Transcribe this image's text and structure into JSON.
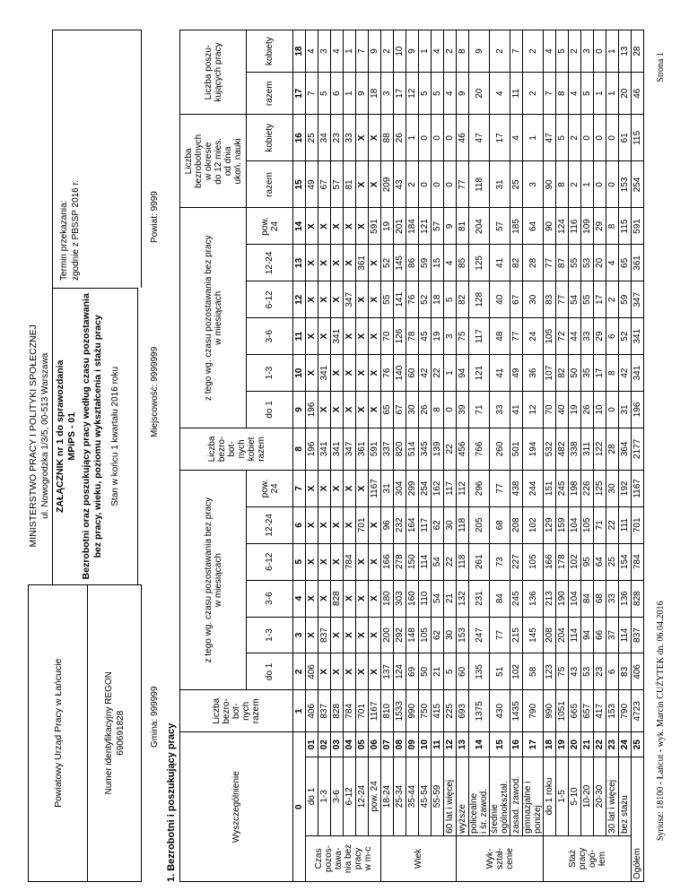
{
  "page": {
    "header": {
      "left": {
        "office_name": "Powiatowy Urząd Pracy w Łańcucie",
        "regon_label": "Numer identyfikacyjny REGON",
        "regon_value": "690691828"
      },
      "center": {
        "ministry": "MINISTERSTWO PRACY I POLITYKI SPOŁECZNEJ",
        "address": "ul. Nowogrodzka 1/3/5, 00-513 Warszawa",
        "attachment": "ZAŁĄCZNIK nr 1 do sprawozdania",
        "form_code": "MPiPS - 01",
        "title_line1": "Bezrobotni oraz poszukujący pracy według czasu pozostawania",
        "title_line2": "bez pracy, wieku, poziomu wykształcenia i stażu pracy",
        "status_line": "Stan w końcu 1 kwartału 2016 roku"
      },
      "right": {
        "deadline_label": "Termin przekazania:",
        "deadline_value": "zgodnie z PBSSP 2016 r."
      },
      "location": {
        "gmina": "Gmina: 999999",
        "miejscowosc": "Miejscowość: 9999999",
        "powiat": "Powiat: 9999"
      }
    },
    "section_title": "1. Bezrobotni i poszukujący pracy",
    "footer": {
      "left": "Syriusz: 18100 - Łańcut - wyk. Marcin CUŻYTEK dn. 06.04.2016",
      "right": "Strona 1"
    }
  },
  "table": {
    "headers": {
      "wyszczegolnienie": "Wyszczególnienie",
      "col1": "Liczba\nbezro-\nbot-\nnych\nrazem",
      "group_time": "z tego wg. czasu pozostawania bez pracy\nw miesiącach",
      "col8": "Liczba\nbezro-\nbot-\nnych\nkobiet\nrazem",
      "group_grad": "Liczba\nbezrobotnych\nw okresie\ndo 12 mies.\nod dnia\nukoń. nauki",
      "group_seek": "Liczba poszu-\nkujących pracy",
      "sub_time": [
        "do 1",
        "1-3",
        "3-6",
        "6-12",
        "12-24",
        "pow.\n24"
      ],
      "sub_razem": "razem",
      "sub_kobiety": "kobiety",
      "col_numbers": [
        "0",
        "1",
        "2",
        "3",
        "4",
        "5",
        "6",
        "7",
        "8",
        "9",
        "10",
        "11",
        "12",
        "13",
        "14",
        "15",
        "16",
        "17",
        "18"
      ]
    },
    "groups": [
      {
        "label": "Czas\npozos-\ntawa-\nnia bez\npracy\nw m-c",
        "start": 0,
        "count": 6
      },
      {
        "label": "Wiek",
        "start": 6,
        "count": 6
      },
      {
        "label": "Wyk-\nształ-\ncenie",
        "start": 12,
        "count": 5
      },
      {
        "label": "Staż\npracy\nogó-\nłem",
        "start": 17,
        "count": 7
      }
    ],
    "rows": [
      {
        "num": "01",
        "label": "do 1",
        "align": "center",
        "v": [
          "406",
          "406",
          "X",
          "X",
          "X",
          "X",
          "X",
          "196",
          "196",
          "X",
          "X",
          "X",
          "X",
          "X",
          "49",
          "25",
          "7",
          "4"
        ]
      },
      {
        "num": "02",
        "label": "1-3",
        "align": "center",
        "v": [
          "837",
          "X",
          "837",
          "X",
          "X",
          "X",
          "X",
          "341",
          "X",
          "341",
          "X",
          "X",
          "X",
          "X",
          "67",
          "34",
          "5",
          "3"
        ]
      },
      {
        "num": "03",
        "label": "3-6",
        "align": "center",
        "v": [
          "828",
          "X",
          "X",
          "828",
          "X",
          "X",
          "X",
          "341",
          "X",
          "X",
          "341",
          "X",
          "X",
          "X",
          "57",
          "23",
          "6",
          "4"
        ]
      },
      {
        "num": "04",
        "label": "6-12",
        "align": "center",
        "v": [
          "784",
          "X",
          "X",
          "X",
          "784",
          "X",
          "X",
          "347",
          "X",
          "X",
          "X",
          "347",
          "X",
          "X",
          "81",
          "33",
          "1",
          "1"
        ]
      },
      {
        "num": "05",
        "label": "12-24",
        "align": "center",
        "v": [
          "701",
          "X",
          "X",
          "X",
          "X",
          "701",
          "X",
          "361",
          "X",
          "X",
          "X",
          "X",
          "361",
          "X",
          "X",
          "X",
          "9",
          "7"
        ]
      },
      {
        "num": "06",
        "label": "pow. 24",
        "align": "center",
        "v": [
          "1167",
          "X",
          "X",
          "X",
          "X",
          "X",
          "1167",
          "591",
          "X",
          "X",
          "X",
          "X",
          "X",
          "591",
          "X",
          "X",
          "18",
          "9"
        ]
      },
      {
        "num": "07",
        "label": "18-24",
        "align": "center",
        "v": [
          "810",
          "137",
          "200",
          "180",
          "166",
          "96",
          "31",
          "337",
          "65",
          "76",
          "70",
          "55",
          "52",
          "19",
          "209",
          "88",
          "3",
          "2"
        ]
      },
      {
        "num": "08",
        "label": "25-34",
        "align": "center",
        "v": [
          "1533",
          "124",
          "292",
          "303",
          "278",
          "232",
          "304",
          "820",
          "67",
          "140",
          "126",
          "141",
          "145",
          "201",
          "43",
          "26",
          "17",
          "10"
        ]
      },
      {
        "num": "09",
        "label": "35-44",
        "align": "center",
        "v": [
          "990",
          "69",
          "148",
          "160",
          "150",
          "164",
          "299",
          "514",
          "30",
          "60",
          "78",
          "76",
          "86",
          "184",
          "2",
          "1",
          "12",
          "9"
        ]
      },
      {
        "num": "10",
        "label": "45-54",
        "align": "center",
        "v": [
          "750",
          "50",
          "105",
          "110",
          "114",
          "117",
          "254",
          "345",
          "26",
          "42",
          "45",
          "52",
          "59",
          "121",
          "0",
          "0",
          "5",
          "1"
        ]
      },
      {
        "num": "11",
        "label": "55-59",
        "align": "center",
        "v": [
          "415",
          "21",
          "62",
          "54",
          "54",
          "62",
          "162",
          "139",
          "8",
          "22",
          "19",
          "18",
          "15",
          "57",
          "0",
          "0",
          "5",
          "4"
        ]
      },
      {
        "num": "12",
        "label": "60 lat i więcej",
        "align": "left",
        "v": [
          "225",
          "5",
          "30",
          "21",
          "22",
          "30",
          "117",
          "22",
          "0",
          "1",
          "3",
          "5",
          "4",
          "9",
          "0",
          "0",
          "4",
          "2"
        ]
      },
      {
        "num": "13",
        "label": "wyższe",
        "align": "left",
        "v": [
          "693",
          "60",
          "153",
          "132",
          "118",
          "118",
          "112",
          "456",
          "39",
          "94",
          "75",
          "82",
          "85",
          "81",
          "77",
          "46",
          "9",
          "8"
        ]
      },
      {
        "num": "14",
        "label": "policealne\ni śr. zawod.",
        "align": "left",
        "v": [
          "1375",
          "135",
          "247",
          "231",
          "261",
          "205",
          "296",
          "766",
          "71",
          "121",
          "117",
          "128",
          "125",
          "204",
          "118",
          "47",
          "20",
          "9"
        ]
      },
      {
        "num": "15",
        "label": "średnie\nogólnokształ.",
        "align": "left",
        "v": [
          "430",
          "51",
          "77",
          "84",
          "73",
          "68",
          "77",
          "260",
          "33",
          "41",
          "48",
          "40",
          "41",
          "57",
          "31",
          "17",
          "4",
          "2"
        ]
      },
      {
        "num": "16",
        "label": "zasad. zawod.",
        "align": "left",
        "v": [
          "1435",
          "102",
          "215",
          "245",
          "227",
          "208",
          "438",
          "501",
          "41",
          "49",
          "77",
          "67",
          "82",
          "185",
          "25",
          "4",
          "11",
          "7"
        ]
      },
      {
        "num": "17",
        "label": "gimnazjalne i\nponiżej",
        "align": "left",
        "v": [
          "790",
          "58",
          "145",
          "136",
          "105",
          "102",
          "244",
          "194",
          "12",
          "36",
          "24",
          "30",
          "28",
          "64",
          "3",
          "1",
          "2",
          "2"
        ]
      },
      {
        "num": "18",
        "label": "do 1 roku",
        "align": "center",
        "v": [
          "990",
          "123",
          "208",
          "213",
          "166",
          "129",
          "151",
          "532",
          "70",
          "107",
          "105",
          "83",
          "77",
          "90",
          "90",
          "47",
          "7",
          "4"
        ]
      },
      {
        "num": "19",
        "label": "1-5",
        "align": "center",
        "v": [
          "1051",
          "75",
          "204",
          "190",
          "178",
          "159",
          "245",
          "482",
          "40",
          "82",
          "72",
          "77",
          "87",
          "124",
          "8",
          "5",
          "8",
          "5"
        ]
      },
      {
        "num": "20",
        "label": "5-10",
        "align": "center",
        "v": [
          "665",
          "43",
          "114",
          "104",
          "102",
          "104",
          "198",
          "338",
          "19",
          "50",
          "44",
          "54",
          "55",
          "116",
          "2",
          "2",
          "4",
          "2"
        ]
      },
      {
        "num": "21",
        "label": "10-20",
        "align": "center",
        "v": [
          "657",
          "53",
          "94",
          "84",
          "95",
          "105",
          "226",
          "311",
          "26",
          "35",
          "33",
          "55",
          "53",
          "109",
          "1",
          "0",
          "5",
          "3"
        ]
      },
      {
        "num": "22",
        "label": "20-30",
        "align": "center",
        "v": [
          "417",
          "23",
          "66",
          "68",
          "64",
          "71",
          "125",
          "122",
          "10",
          "17",
          "29",
          "17",
          "20",
          "29",
          "0",
          "0",
          "1",
          "0"
        ]
      },
      {
        "num": "23",
        "label": "30 lat i więcej",
        "align": "left",
        "v": [
          "153",
          "6",
          "37",
          "33",
          "25",
          "22",
          "30",
          "28",
          "0",
          "8",
          "6",
          "2",
          "4",
          "8",
          "0",
          "0",
          "1",
          "1"
        ]
      },
      {
        "num": "24",
        "label": "bez stażu",
        "align": "left",
        "v": [
          "790",
          "83",
          "114",
          "136",
          "154",
          "111",
          "192",
          "364",
          "31",
          "42",
          "52",
          "59",
          "65",
          "115",
          "153",
          "61",
          "20",
          "13"
        ]
      },
      {
        "num": "25",
        "label": "Ogółem",
        "align": "left",
        "total": true,
        "v": [
          "4723",
          "406",
          "837",
          "828",
          "784",
          "701",
          "1167",
          "2177",
          "196",
          "341",
          "341",
          "347",
          "361",
          "591",
          "254",
          "115",
          "46",
          "28"
        ]
      }
    ]
  }
}
